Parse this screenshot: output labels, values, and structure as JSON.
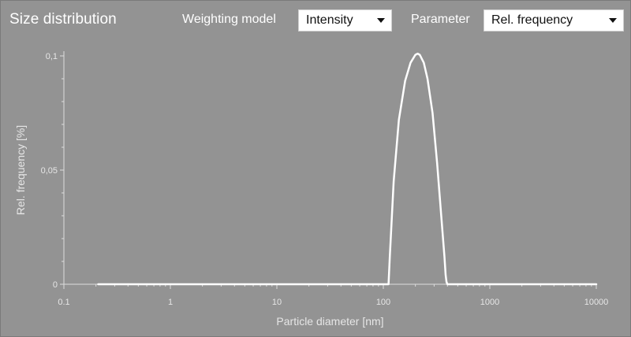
{
  "header": {
    "title": "Size distribution",
    "weighting_label": "Weighting model",
    "weighting_value": "Intensity",
    "parameter_label": "Parameter",
    "parameter_value": "Rel. frequency"
  },
  "colors": {
    "background": "#939393",
    "curve": "#ffffff",
    "axis": "#dcdcdc",
    "tick_text": "#e6e6e6"
  },
  "chart_data": {
    "type": "line",
    "title": "",
    "xlabel": "Particle diameter [nm]",
    "ylabel": "Rel. frequency [%]",
    "xscale": "log",
    "xlim": [
      0.1,
      10000
    ],
    "ylim": [
      0,
      0.1
    ],
    "x_ticks": [
      "0.1",
      "1",
      "10",
      "100",
      "1000",
      "10000"
    ],
    "y_ticks": [
      "0",
      "0.05",
      "0.1"
    ],
    "grid": false,
    "series": [
      {
        "x": [
          0.21,
          1,
          10,
          100,
          112,
          115,
          125,
          140,
          160,
          180,
          200,
          210,
          220,
          240,
          260,
          290,
          320,
          350,
          375,
          385,
          392,
          400,
          420,
          10000
        ],
        "y": [
          0,
          0,
          0,
          0,
          0,
          0.012,
          0.045,
          0.072,
          0.089,
          0.097,
          0.1005,
          0.101,
          0.1005,
          0.097,
          0.09,
          0.075,
          0.053,
          0.03,
          0.012,
          0.004,
          0.001,
          0,
          0,
          0
        ]
      }
    ]
  }
}
